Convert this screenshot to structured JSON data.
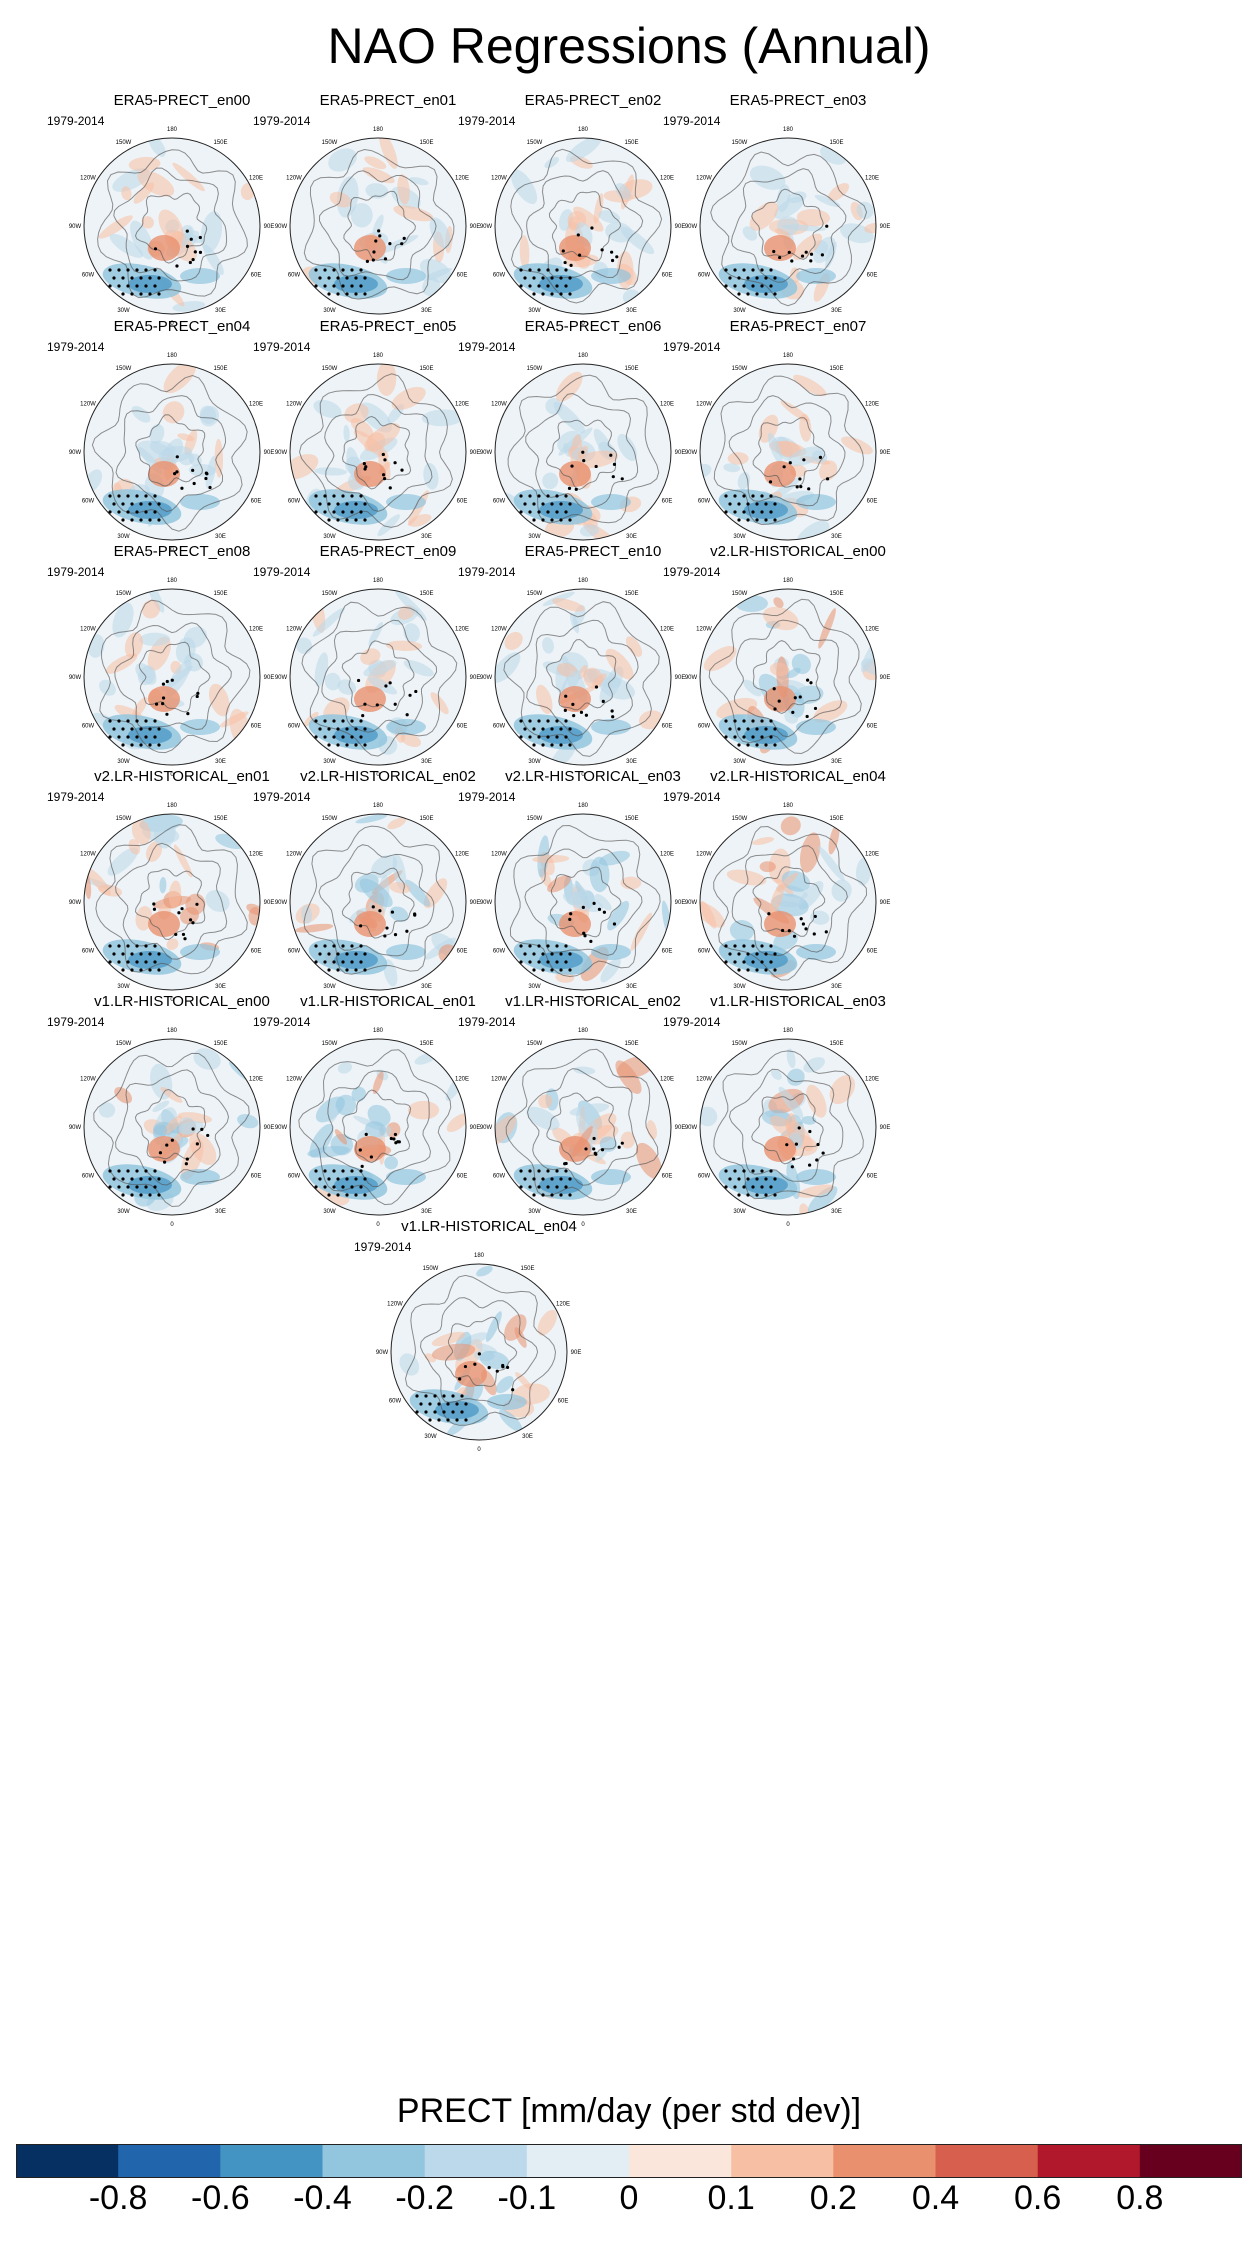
{
  "figure": {
    "title": "NAO Regressions (Annual)",
    "period": "1979-2014",
    "lon_labels": [
      "180",
      "150E",
      "120E",
      "90E",
      "60E",
      "30E",
      "0",
      "30W",
      "60W",
      "90W",
      "120W",
      "150W"
    ]
  },
  "panels": [
    {
      "name": "ERA5-PRECT_en00",
      "style": "era5"
    },
    {
      "name": "ERA5-PRECT_en01",
      "style": "era5"
    },
    {
      "name": "ERA5-PRECT_en02",
      "style": "era5"
    },
    {
      "name": "ERA5-PRECT_en03",
      "style": "era5"
    },
    {
      "name": "ERA5-PRECT_en04",
      "style": "era5"
    },
    {
      "name": "ERA5-PRECT_en05",
      "style": "era5"
    },
    {
      "name": "ERA5-PRECT_en06",
      "style": "era5"
    },
    {
      "name": "ERA5-PRECT_en07",
      "style": "era5"
    },
    {
      "name": "ERA5-PRECT_en08",
      "style": "era5"
    },
    {
      "name": "ERA5-PRECT_en09",
      "style": "era5"
    },
    {
      "name": "ERA5-PRECT_en10",
      "style": "era5"
    },
    {
      "name": "v2.LR-HISTORICAL_en00",
      "style": "model"
    },
    {
      "name": "v2.LR-HISTORICAL_en01",
      "style": "model"
    },
    {
      "name": "v2.LR-HISTORICAL_en02",
      "style": "model"
    },
    {
      "name": "v2.LR-HISTORICAL_en03",
      "style": "model"
    },
    {
      "name": "v2.LR-HISTORICAL_en04",
      "style": "model"
    },
    {
      "name": "v1.LR-HISTORICAL_en00",
      "style": "model"
    },
    {
      "name": "v1.LR-HISTORICAL_en01",
      "style": "model"
    },
    {
      "name": "v1.LR-HISTORICAL_en02",
      "style": "model"
    },
    {
      "name": "v1.LR-HISTORICAL_en03",
      "style": "model"
    },
    {
      "name": "v1.LR-HISTORICAL_en04",
      "style": "model"
    }
  ],
  "colorbar": {
    "label": "PRECT [mm/day (per std dev)]",
    "tick_labels": [
      "-0.8",
      "-0.6",
      "-0.4",
      "-0.2",
      "-0.1",
      "0",
      "0.1",
      "0.2",
      "0.4",
      "0.6",
      "0.8"
    ],
    "colors": [
      "#053061",
      "#2166ac",
      "#4393c3",
      "#92c5de",
      "#bbd9ea",
      "#e3edf4",
      "#fbe6dc",
      "#f7c0a4",
      "#e9916f",
      "#d6604d",
      "#b2182b",
      "#67001f"
    ]
  }
}
